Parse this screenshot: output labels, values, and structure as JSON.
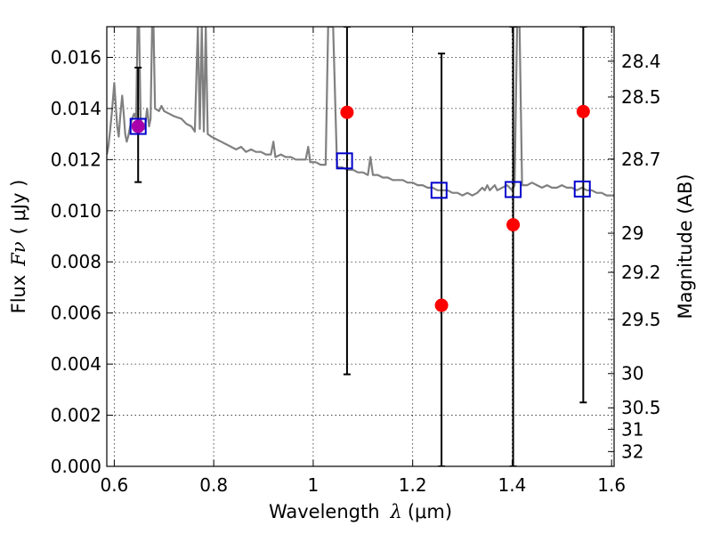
{
  "chart_data": {
    "type": "scatter",
    "xlabel_text": "Wavelength",
    "xlabel_symbol": "λ",
    "xlabel_unit": "(μm)",
    "ylabel_text": "Flux",
    "ylabel_symbol": "Fν",
    "ylabel_unit": "( μJy )",
    "y2label": "Magnitude (AB)",
    "xlim": [
      0.585,
      1.605
    ],
    "ylim": [
      0.0,
      0.0172
    ],
    "x_ticks": [
      0.6,
      0.8,
      1.0,
      1.2,
      1.4,
      1.6
    ],
    "x_tick_labels": [
      "0.6",
      "0.8",
      "1",
      "1.2",
      "1.4",
      "1.6"
    ],
    "y_ticks": [
      0.0,
      0.002,
      0.004,
      0.006,
      0.008,
      0.01,
      0.012,
      0.014,
      0.016
    ],
    "y_tick_labels": [
      "0.000",
      "0.002",
      "0.004",
      "0.006",
      "0.008",
      "0.010",
      "0.012",
      "0.014",
      "0.016"
    ],
    "y2_ticks": [
      {
        "flux": 0.01585,
        "label": "28.4"
      },
      {
        "flux": 0.01445,
        "label": "28.5"
      },
      {
        "flux": 0.01202,
        "label": "28.7"
      },
      {
        "flux": 0.00912,
        "label": "29"
      },
      {
        "flux": 0.00759,
        "label": "29.2"
      },
      {
        "flux": 0.00575,
        "label": "29.5"
      },
      {
        "flux": 0.00363,
        "label": "30"
      },
      {
        "flux": 0.00229,
        "label": "30.5"
      },
      {
        "flux": 0.00145,
        "label": "31"
      },
      {
        "flux": 0.00058,
        "label": "32"
      }
    ],
    "grid": true,
    "colors": {
      "model": "#808080",
      "observed": "#ff0000",
      "model_band": "#0000cc",
      "errorbar": "#000000",
      "overlap": "#aa00aa"
    },
    "series": [
      {
        "kind": "model_spectrum",
        "points": [
          [
            0.585,
            0.0122
          ],
          [
            0.588,
            0.0125
          ],
          [
            0.592,
            0.0132
          ],
          [
            0.596,
            0.014
          ],
          [
            0.6,
            0.015
          ],
          [
            0.603,
            0.0141
          ],
          [
            0.606,
            0.0133
          ],
          [
            0.609,
            0.0129
          ],
          [
            0.612,
            0.0137
          ],
          [
            0.616,
            0.0145
          ],
          [
            0.619,
            0.0138
          ],
          [
            0.622,
            0.013
          ],
          [
            0.625,
            0.0127
          ],
          [
            0.628,
            0.0129
          ],
          [
            0.632,
            0.0133
          ],
          [
            0.636,
            0.0136
          ],
          [
            0.64,
            0.0138
          ],
          [
            0.644,
            0.0136
          ],
          [
            0.647,
            0.0172
          ],
          [
            0.65,
            0.0172
          ],
          [
            0.653,
            0.0136
          ],
          [
            0.656,
            0.0134
          ],
          [
            0.66,
            0.0132
          ],
          [
            0.663,
            0.0135
          ],
          [
            0.666,
            0.014
          ],
          [
            0.67,
            0.0133
          ],
          [
            0.673,
            0.0136
          ],
          [
            0.676,
            0.0172
          ],
          [
            0.679,
            0.0172
          ],
          [
            0.682,
            0.014
          ],
          [
            0.69,
            0.0139
          ],
          [
            0.695,
            0.0141
          ],
          [
            0.7,
            0.0139
          ],
          [
            0.71,
            0.0138
          ],
          [
            0.72,
            0.0137
          ],
          [
            0.735,
            0.0136
          ],
          [
            0.745,
            0.0134
          ],
          [
            0.755,
            0.0133
          ],
          [
            0.762,
            0.0131
          ],
          [
            0.768,
            0.0172
          ],
          [
            0.772,
            0.0132
          ],
          [
            0.776,
            0.0172
          ],
          [
            0.78,
            0.0131
          ],
          [
            0.784,
            0.0172
          ],
          [
            0.788,
            0.013
          ],
          [
            0.795,
            0.0129
          ],
          [
            0.805,
            0.0128
          ],
          [
            0.815,
            0.0127
          ],
          [
            0.825,
            0.0126
          ],
          [
            0.835,
            0.0125
          ],
          [
            0.845,
            0.0124
          ],
          [
            0.855,
            0.0125
          ],
          [
            0.865,
            0.0123
          ],
          [
            0.875,
            0.0124
          ],
          [
            0.885,
            0.0123
          ],
          [
            0.895,
            0.0123
          ],
          [
            0.905,
            0.0122
          ],
          [
            0.915,
            0.0122
          ],
          [
            0.92,
            0.0127
          ],
          [
            0.924,
            0.0121
          ],
          [
            0.935,
            0.0122
          ],
          [
            0.945,
            0.0121
          ],
          [
            0.955,
            0.0121
          ],
          [
            0.965,
            0.012
          ],
          [
            0.975,
            0.012
          ],
          [
            0.985,
            0.012
          ],
          [
            0.99,
            0.0125
          ],
          [
            0.994,
            0.0119
          ],
          [
            1.005,
            0.0119
          ],
          [
            1.015,
            0.0118
          ],
          [
            1.025,
            0.0118
          ],
          [
            1.03,
            0.0172
          ],
          [
            1.04,
            0.0172
          ],
          [
            1.048,
            0.0117
          ],
          [
            1.058,
            0.0117
          ],
          [
            1.07,
            0.0116
          ],
          [
            1.08,
            0.0116
          ],
          [
            1.09,
            0.0115
          ],
          [
            1.1,
            0.0115
          ],
          [
            1.11,
            0.0114
          ],
          [
            1.115,
            0.0121
          ],
          [
            1.12,
            0.0114
          ],
          [
            1.13,
            0.0114
          ],
          [
            1.14,
            0.0113
          ],
          [
            1.15,
            0.0113
          ],
          [
            1.16,
            0.0112
          ],
          [
            1.17,
            0.0112
          ],
          [
            1.18,
            0.0112
          ],
          [
            1.19,
            0.0111
          ],
          [
            1.2,
            0.0111
          ],
          [
            1.21,
            0.011
          ],
          [
            1.22,
            0.011
          ],
          [
            1.23,
            0.0109
          ],
          [
            1.24,
            0.0109
          ],
          [
            1.25,
            0.0108
          ],
          [
            1.26,
            0.0108
          ],
          [
            1.27,
            0.0108
          ],
          [
            1.28,
            0.0107
          ],
          [
            1.29,
            0.0107
          ],
          [
            1.3,
            0.0106
          ],
          [
            1.31,
            0.0107
          ],
          [
            1.32,
            0.0106
          ],
          [
            1.33,
            0.0107
          ],
          [
            1.34,
            0.0109
          ],
          [
            1.345,
            0.0108
          ],
          [
            1.35,
            0.011
          ],
          [
            1.355,
            0.0108
          ],
          [
            1.36,
            0.0109
          ],
          [
            1.365,
            0.011
          ],
          [
            1.37,
            0.0108
          ],
          [
            1.38,
            0.0109
          ],
          [
            1.39,
            0.011
          ],
          [
            1.4,
            0.0108
          ],
          [
            1.405,
            0.011
          ],
          [
            1.41,
            0.0172
          ],
          [
            1.415,
            0.0172
          ],
          [
            1.42,
            0.011
          ],
          [
            1.43,
            0.011
          ],
          [
            1.44,
            0.0111
          ],
          [
            1.45,
            0.011
          ],
          [
            1.46,
            0.0109
          ],
          [
            1.47,
            0.011
          ],
          [
            1.48,
            0.0109
          ],
          [
            1.49,
            0.0109
          ],
          [
            1.5,
            0.011
          ],
          [
            1.51,
            0.0109
          ],
          [
            1.52,
            0.0109
          ],
          [
            1.53,
            0.0108
          ],
          [
            1.54,
            0.0109
          ],
          [
            1.55,
            0.0108
          ],
          [
            1.56,
            0.0108
          ],
          [
            1.57,
            0.0107
          ],
          [
            1.58,
            0.0107
          ],
          [
            1.59,
            0.0106
          ],
          [
            1.605,
            0.0106
          ]
        ]
      },
      {
        "kind": "observed_flux",
        "marker": "filled-circle",
        "points": [
          {
            "x": 0.648,
            "y": 0.0133,
            "yerr_low": 0.01112,
            "yerr_high": 0.0156
          },
          {
            "x": 1.068,
            "y": 0.01385,
            "yerr_low": 0.0036,
            "yerr_high": 0.0172
          },
          {
            "x": 1.258,
            "y": 0.0063,
            "yerr_low": 0.0,
            "yerr_high": 0.01615
          },
          {
            "x": 1.402,
            "y": 0.00945,
            "yerr_low": 0.0,
            "yerr_high": 0.0172
          },
          {
            "x": 1.543,
            "y": 0.01388,
            "yerr_low": 0.0025,
            "yerr_high": 0.0172
          }
        ]
      },
      {
        "kind": "model_band_flux",
        "marker": "open-square",
        "points": [
          {
            "x": 0.648,
            "y": 0.0133
          },
          {
            "x": 1.063,
            "y": 0.01195
          },
          {
            "x": 1.253,
            "y": 0.0108
          },
          {
            "x": 1.402,
            "y": 0.01083
          },
          {
            "x": 1.541,
            "y": 0.01085
          }
        ]
      }
    ]
  }
}
